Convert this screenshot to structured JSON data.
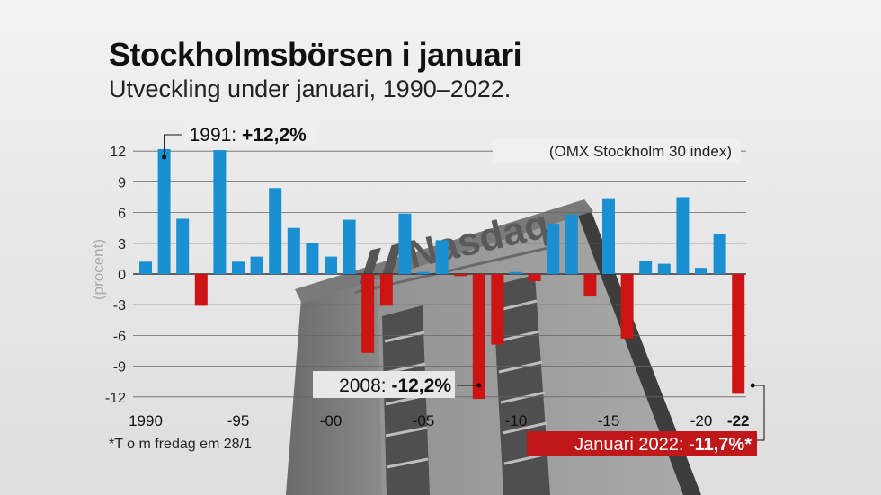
{
  "title": "Stockholmsbörsen i januari",
  "subtitle": "Utveckling under januari, 1990–2022.",
  "footnote": "*T o m fredag em 28/1",
  "colors": {
    "positive": "#1a8fd1",
    "negative": "#cc1414",
    "text": "#111111",
    "axis_label": "#aaaaaa"
  },
  "background": {
    "logo_text": "Nasdaq"
  },
  "chart_data": {
    "type": "bar",
    "series_label": "(OMX Stockholm 30 index)",
    "ylabel": "(procent)",
    "ylim": [
      -12,
      12
    ],
    "yticks": [
      12,
      9,
      6,
      3,
      0,
      -3,
      -6,
      -9,
      -12
    ],
    "xticks": [
      {
        "year": 1990,
        "label": "1990"
      },
      {
        "year": 1995,
        "label": "-95"
      },
      {
        "year": 2000,
        "label": "-00"
      },
      {
        "year": 2005,
        "label": "-05"
      },
      {
        "year": 2010,
        "label": "-10"
      },
      {
        "year": 2015,
        "label": "-15"
      },
      {
        "year": 2020,
        "label": "-20"
      },
      {
        "year": 2022,
        "label": "-22"
      }
    ],
    "years": [
      1990,
      1991,
      1992,
      1993,
      1994,
      1995,
      1996,
      1997,
      1998,
      1999,
      2000,
      2001,
      2002,
      2003,
      2004,
      2005,
      2006,
      2007,
      2008,
      2009,
      2010,
      2011,
      2012,
      2013,
      2014,
      2015,
      2016,
      2017,
      2018,
      2019,
      2020,
      2021,
      2022
    ],
    "values": [
      1.2,
      12.2,
      5.4,
      -3.1,
      12.1,
      1.2,
      1.7,
      8.4,
      4.5,
      3.0,
      1.7,
      5.3,
      -7.7,
      -3.1,
      5.9,
      0.2,
      3.3,
      -0.2,
      -12.2,
      -6.9,
      0.2,
      -0.7,
      4.9,
      5.8,
      -2.2,
      7.4,
      -6.3,
      1.3,
      1.0,
      7.5,
      0.6,
      3.9,
      -11.7
    ],
    "annotations": [
      {
        "year": 1991,
        "year_label": "1991:",
        "value_label": "+12,2%"
      },
      {
        "year": 2008,
        "year_label": "2008:",
        "value_label": "-12,2%"
      },
      {
        "year": 2022,
        "year_label": "Januari 2022:",
        "value_label": "-11,7%*"
      }
    ]
  }
}
